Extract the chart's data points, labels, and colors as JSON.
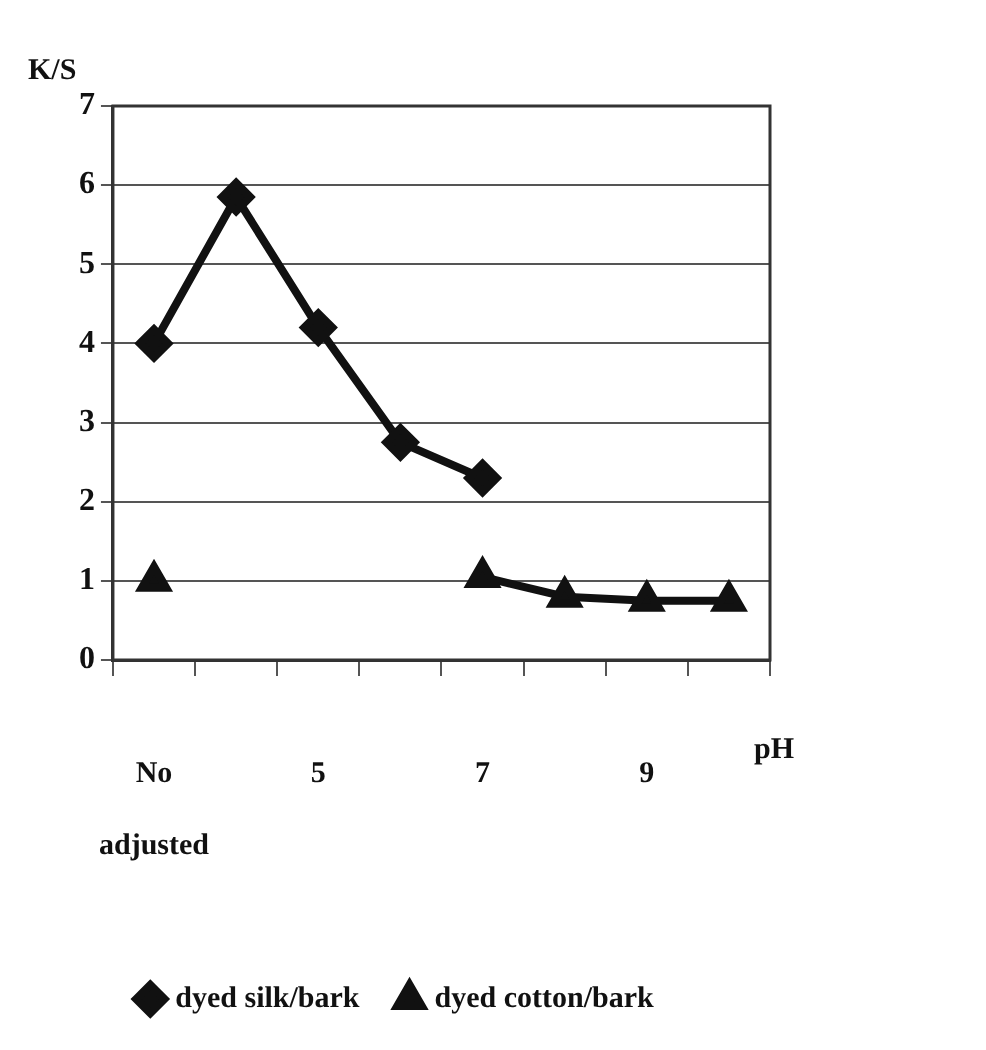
{
  "chart_data": {
    "type": "line",
    "xlabel": "pH",
    "ylabel": "K/S",
    "categories": [
      "No adjusted",
      null,
      "5",
      null,
      "7",
      null,
      "9",
      null
    ],
    "series": [
      {
        "name": "dyed silk/bark",
        "color": "#111111",
        "marker": "diamond",
        "values": [
          4.0,
          5.85,
          4.2,
          2.75,
          2.3,
          null,
          null,
          null
        ]
      },
      {
        "name": "dyed cotton/bark",
        "color": "#111111",
        "marker": "triangle",
        "values": [
          1.0,
          null,
          null,
          null,
          1.05,
          0.8,
          0.75,
          0.75
        ]
      }
    ],
    "ylim": [
      0,
      7
    ],
    "yticks": [
      0,
      1,
      2,
      3,
      4,
      5,
      6,
      7
    ],
    "grid": "y",
    "legend": "bottom"
  }
}
